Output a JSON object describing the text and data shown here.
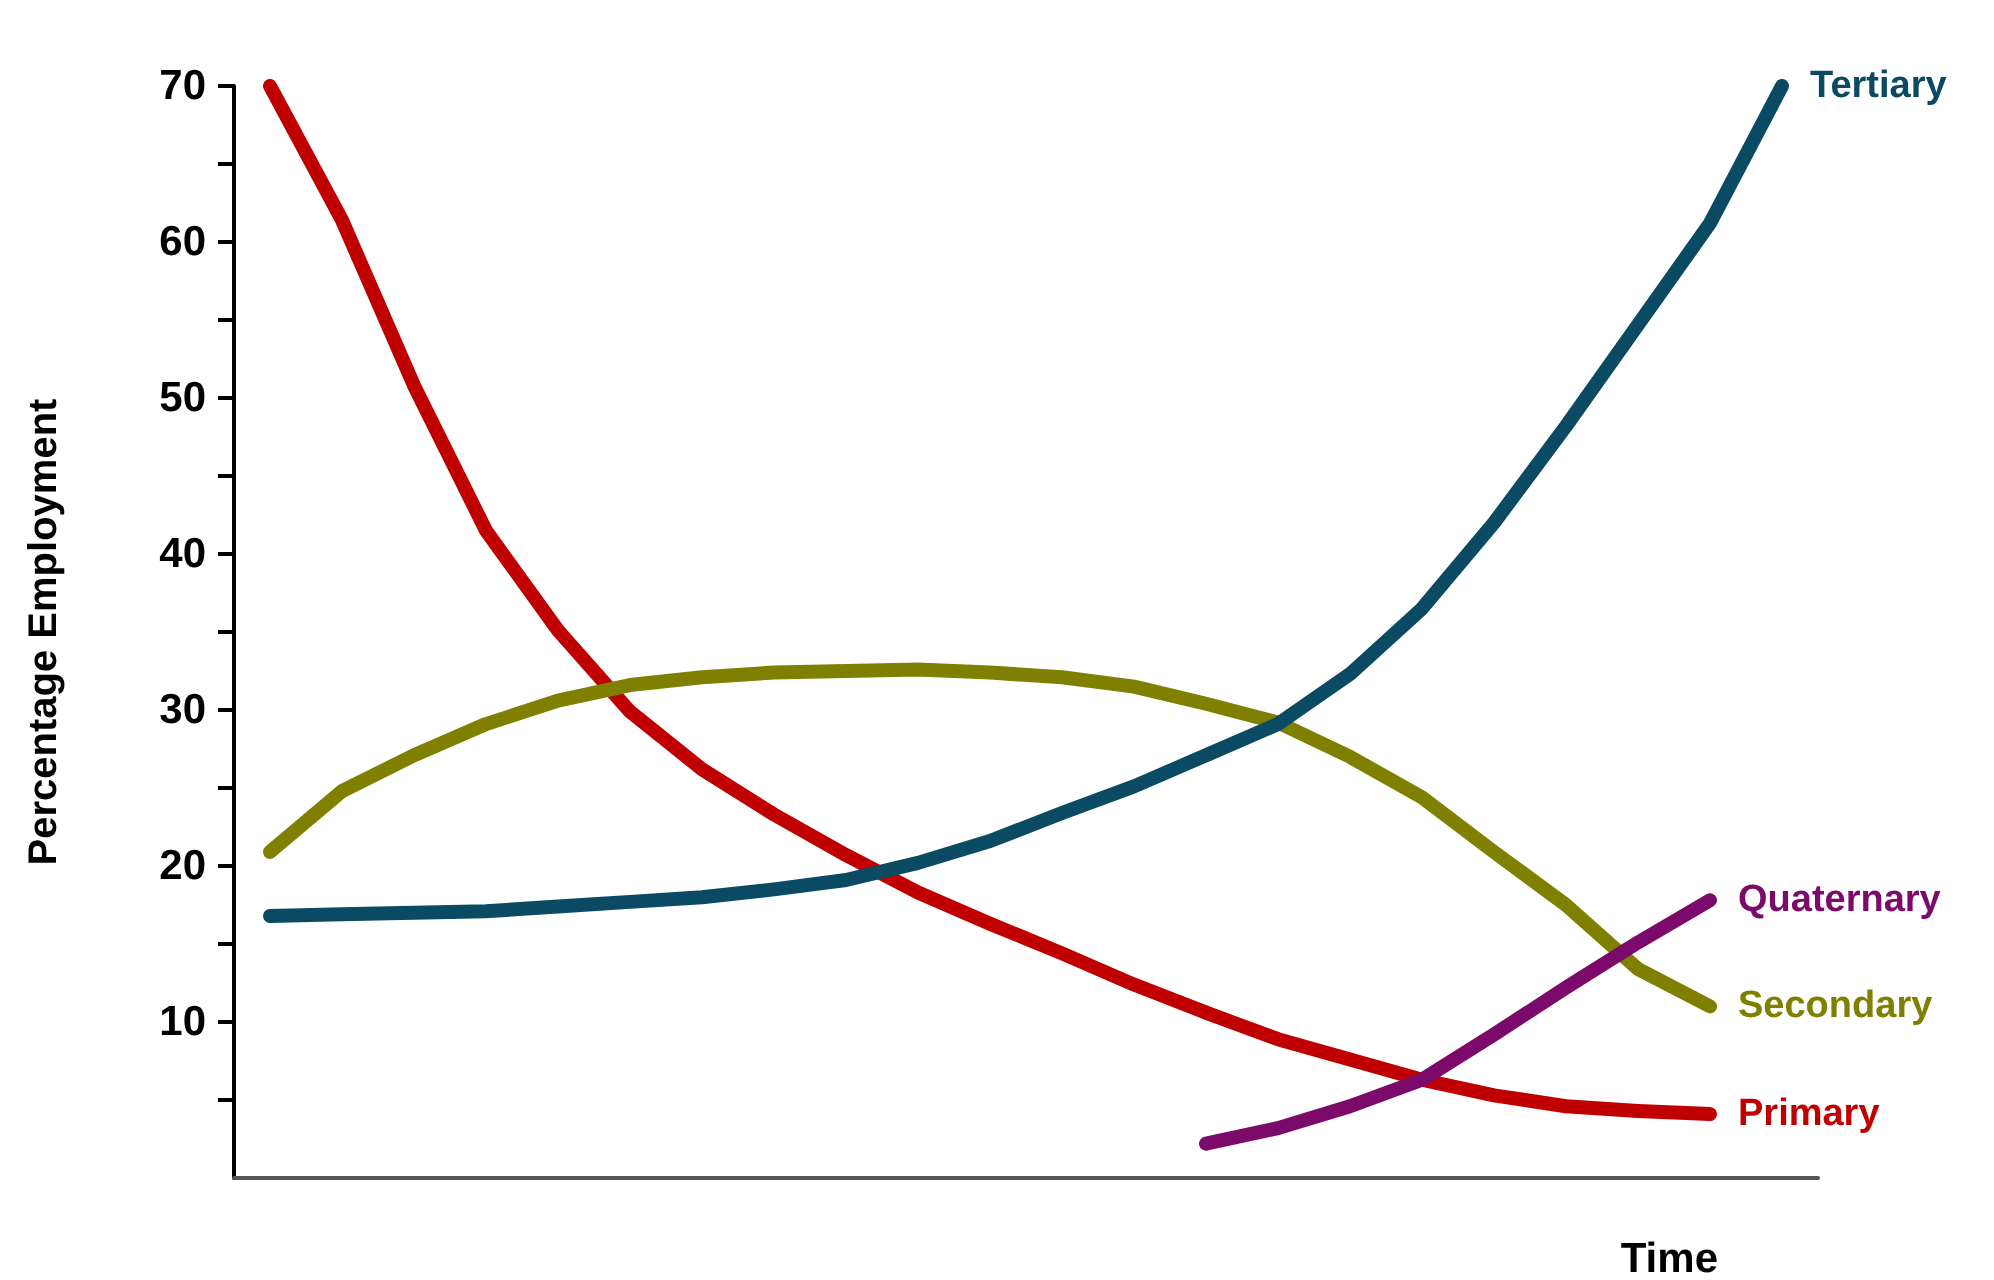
{
  "chart_data": {
    "type": "line",
    "xlabel": "Time",
    "ylabel": "Percentage Employment",
    "categories": [
      null,
      null,
      null,
      null,
      null,
      null,
      null,
      null,
      null,
      null,
      null,
      null,
      null,
      null,
      null,
      null,
      null,
      null,
      null,
      null,
      null,
      null
    ],
    "ylim": [
      0,
      70
    ],
    "yticks": [
      {
        "value": 5,
        "label": null
      },
      10,
      {
        "value": 15,
        "label": null
      },
      20,
      {
        "value": 25,
        "label": null
      },
      30,
      {
        "value": 35,
        "label": null
      },
      40,
      {
        "value": 45,
        "label": null
      },
      50,
      {
        "value": 55,
        "label": null
      },
      60,
      {
        "value": 65,
        "label": null
      },
      70
    ],
    "tick_labels": "y",
    "grid": false,
    "legend": false,
    "marker": "none",
    "line_style": "solid",
    "series": [
      {
        "name": "Primary",
        "color": "#c00000",
        "values": [
          70,
          61.4,
          50.8,
          41.5,
          35.1,
          29.9,
          26.2,
          23.3,
          20.7,
          18.3,
          16.3,
          14.4,
          12.4,
          10.6,
          8.9,
          7.6,
          6.3,
          5.3,
          4.6,
          4.3,
          4.1,
          null
        ]
      },
      {
        "name": "Secondary",
        "color": "#808000",
        "values": [
          20.9,
          24.8,
          27.1,
          29.1,
          30.6,
          31.6,
          32.1,
          32.4,
          32.5,
          32.6,
          32.4,
          32.1,
          31.5,
          30.4,
          29.2,
          27.0,
          24.4,
          20.9,
          17.5,
          13.4,
          11.0,
          null
        ]
      },
      {
        "name": "Tertiary",
        "color": "#0a4a63",
        "values": [
          16.8,
          16.9,
          17.0,
          17.1,
          17.4,
          17.7,
          18.0,
          18.5,
          19.1,
          20.2,
          21.6,
          23.4,
          25.1,
          27.1,
          29.1,
          32.3,
          36.5,
          42.0,
          48.2,
          54.7,
          61.2,
          70
        ]
      },
      {
        "name": "Quaternary",
        "color": "#7b0a6a",
        "values": [
          null,
          null,
          null,
          null,
          null,
          null,
          null,
          null,
          null,
          null,
          null,
          null,
          null,
          2.2,
          3.2,
          4.6,
          6.3,
          9.2,
          12.2,
          15.1,
          17.8,
          null
        ]
      }
    ]
  }
}
